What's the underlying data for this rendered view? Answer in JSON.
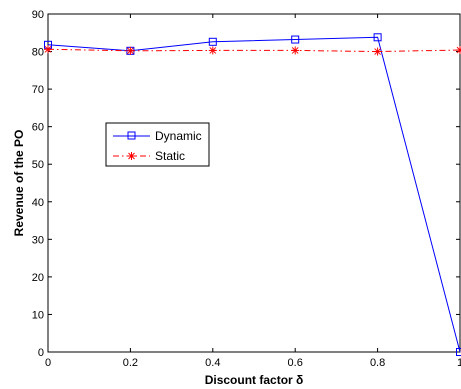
{
  "chart_data": {
    "type": "line",
    "title": "",
    "xlabel": "Discount factor δ",
    "ylabel": "Revenue of the PO",
    "xlim": [
      0,
      1
    ],
    "ylim": [
      0,
      90
    ],
    "x_ticks": [
      "0",
      "0.2",
      "0.4",
      "0.6",
      "0.8",
      "1"
    ],
    "y_ticks": [
      "0",
      "10",
      "20",
      "30",
      "40",
      "50",
      "60",
      "70",
      "80",
      "90"
    ],
    "grid": false,
    "legend_position": "middle-left",
    "series": [
      {
        "name": "Dynamic",
        "color": "#0000ff",
        "marker": "square",
        "line_style": "solid",
        "x": [
          0,
          0.2,
          0.4,
          0.6,
          0.8,
          1.0
        ],
        "values": [
          81.8,
          80.2,
          82.6,
          83.2,
          83.8,
          0
        ]
      },
      {
        "name": "Static",
        "color": "#ff0000",
        "marker": "asterisk",
        "line_style": "dash-dot",
        "x": [
          0,
          0.2,
          0.4,
          0.6,
          0.8,
          1.0
        ],
        "values": [
          80.6,
          80.2,
          80.3,
          80.3,
          80.0,
          80.4
        ]
      }
    ]
  }
}
